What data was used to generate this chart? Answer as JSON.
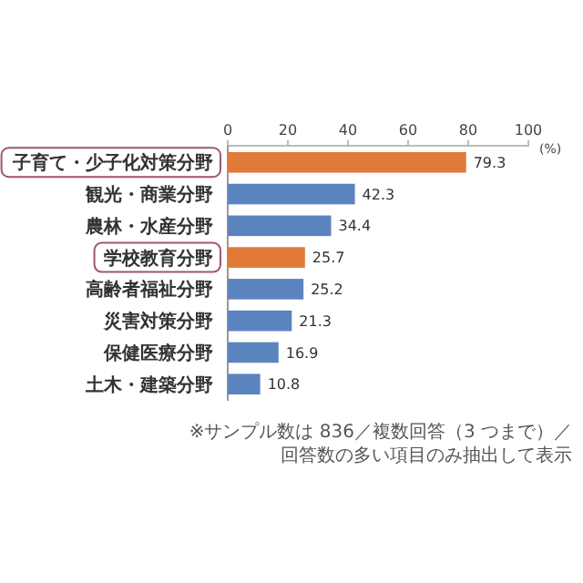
{
  "chart_data": {
    "type": "bar",
    "orientation": "horizontal",
    "categories": [
      "子育て・少子化対策分野",
      "観光・商業分野",
      "農林・水産分野",
      "学校教育分野",
      "高齢者福祉分野",
      "災害対策分野",
      "保健医療分野",
      "土木・建築分野"
    ],
    "values": [
      79.3,
      42.3,
      34.4,
      25.7,
      25.2,
      21.3,
      16.9,
      10.8
    ],
    "colors": [
      "#e07a38",
      "#5b84bf",
      "#5b84bf",
      "#e07a38",
      "#5b84bf",
      "#5b84bf",
      "#5b84bf",
      "#5b84bf"
    ],
    "xlim": [
      0,
      100
    ],
    "xticks": [
      0,
      20,
      40,
      60,
      80,
      100
    ],
    "xlabel": "(%)",
    "data_labels": true,
    "grid": false,
    "annotations": [
      "※サンプル数は 836／複数回答（3 つまで）／回答数の多い項目のみ抽出して表示"
    ]
  }
}
